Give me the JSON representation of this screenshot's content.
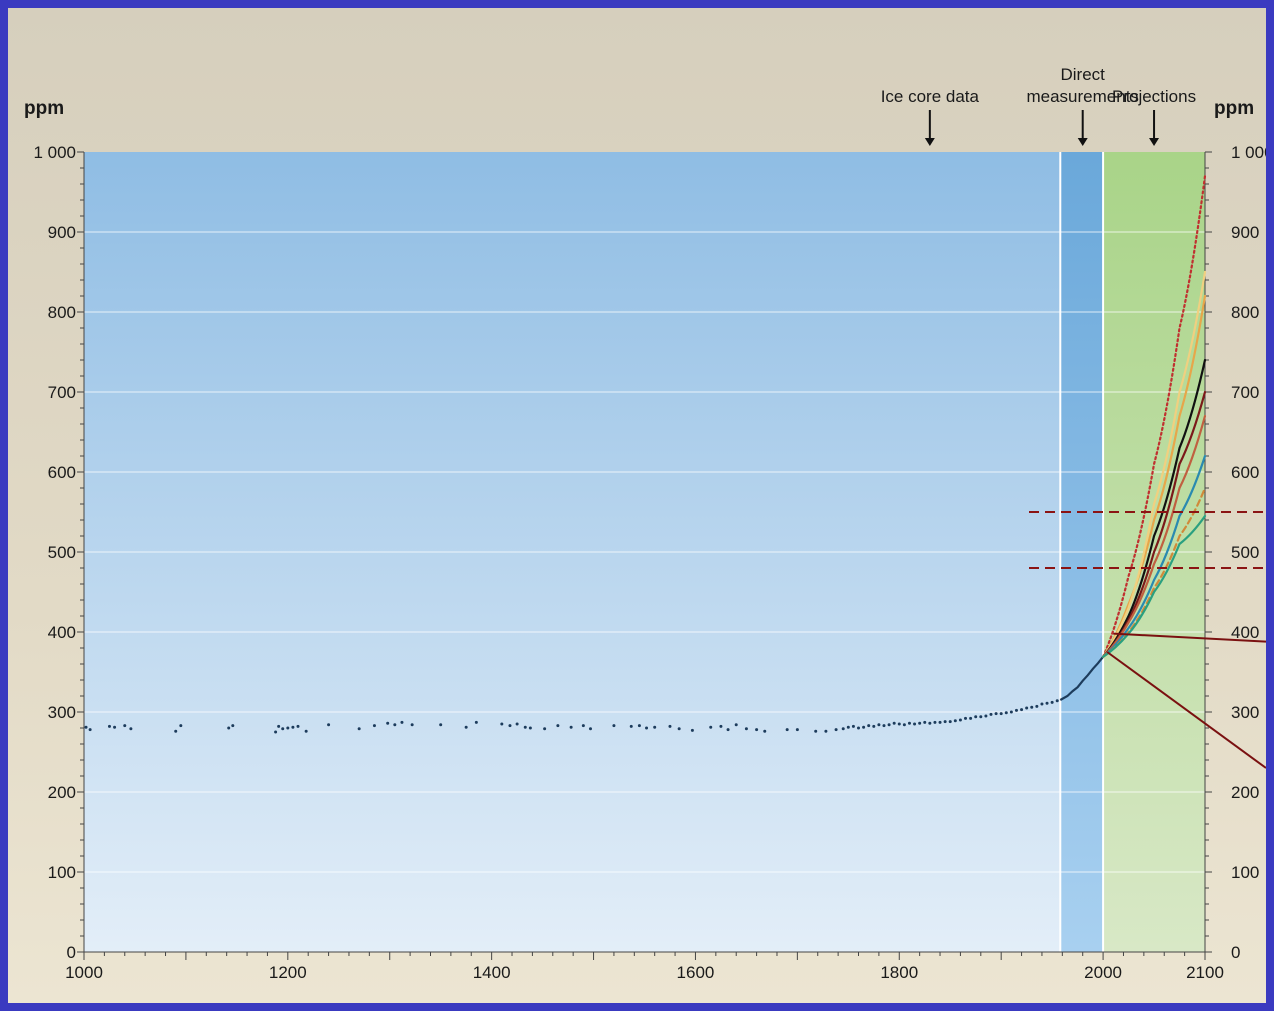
{
  "chart_data": {
    "type": "line",
    "title": "",
    "xlabel": "",
    "ylabel": "ppm",
    "y_unit_left": "ppm",
    "y_unit_right": "ppm",
    "xlim": [
      1000,
      2100
    ],
    "ylim": [
      0,
      1000
    ],
    "x_ticks": [
      {
        "value": 1000,
        "label": "1000"
      },
      {
        "value": 1200,
        "label": "1200"
      },
      {
        "value": 1400,
        "label": "1400"
      },
      {
        "value": 1600,
        "label": "1600"
      },
      {
        "value": 1800,
        "label": "1800"
      },
      {
        "value": 2000,
        "label": "2000"
      },
      {
        "value": 2100,
        "label": "2100"
      }
    ],
    "y_ticks": [
      {
        "value": 0,
        "label": "0"
      },
      {
        "value": 100,
        "label": "100"
      },
      {
        "value": 200,
        "label": "200"
      },
      {
        "value": 300,
        "label": "300"
      },
      {
        "value": 400,
        "label": "400"
      },
      {
        "value": 500,
        "label": "500"
      },
      {
        "value": 600,
        "label": "600"
      },
      {
        "value": 700,
        "label": "700"
      },
      {
        "value": 800,
        "label": "800"
      },
      {
        "value": 900,
        "label": "900"
      },
      {
        "value": 1000,
        "label": "1 000"
      }
    ],
    "grid": "horizontal",
    "periods": [
      {
        "name": "Ice core data",
        "from": 1000,
        "to": 1958,
        "color": "#9ec6e8"
      },
      {
        "name": "Direct measurements",
        "from": 1958,
        "to": 2000,
        "color": "#6aa8da"
      },
      {
        "name": "Projections",
        "from": 2000,
        "to": 2100,
        "color": "#b9d89a"
      }
    ],
    "annotations": [
      {
        "text": "Ice core data",
        "x": 1830,
        "lines": [
          "Ice core data"
        ]
      },
      {
        "text": "Direct measurements",
        "x": 1980,
        "lines": [
          "Direct",
          "measurements"
        ]
      },
      {
        "text": "Projections",
        "x": 2050,
        "lines": [
          "Projections"
        ]
      }
    ],
    "reference_levels": [
      550,
      480
    ],
    "ice_core_points": [
      [
        1002,
        281
      ],
      [
        1006,
        278
      ],
      [
        1025,
        282
      ],
      [
        1030,
        281
      ],
      [
        1040,
        283
      ],
      [
        1046,
        279
      ],
      [
        1090,
        276
      ],
      [
        1095,
        283
      ],
      [
        1142,
        280
      ],
      [
        1146,
        283
      ],
      [
        1188,
        275
      ],
      [
        1191,
        282
      ],
      [
        1195,
        279
      ],
      [
        1200,
        280
      ],
      [
        1205,
        281
      ],
      [
        1210,
        282
      ],
      [
        1218,
        276
      ],
      [
        1240,
        284
      ],
      [
        1270,
        279
      ],
      [
        1285,
        283
      ],
      [
        1298,
        286
      ],
      [
        1305,
        284
      ],
      [
        1312,
        287
      ],
      [
        1322,
        284
      ],
      [
        1350,
        284
      ],
      [
        1375,
        281
      ],
      [
        1385,
        287
      ],
      [
        1410,
        285
      ],
      [
        1418,
        283
      ],
      [
        1425,
        285
      ],
      [
        1433,
        281
      ],
      [
        1438,
        280
      ],
      [
        1452,
        279
      ],
      [
        1465,
        283
      ],
      [
        1478,
        281
      ],
      [
        1490,
        283
      ],
      [
        1497,
        279
      ],
      [
        1520,
        283
      ],
      [
        1537,
        282
      ],
      [
        1545,
        283
      ],
      [
        1552,
        280
      ],
      [
        1560,
        281
      ],
      [
        1575,
        282
      ],
      [
        1584,
        279
      ],
      [
        1597,
        277
      ],
      [
        1615,
        281
      ],
      [
        1625,
        282
      ],
      [
        1632,
        278
      ],
      [
        1640,
        284
      ],
      [
        1650,
        279
      ],
      [
        1660,
        278
      ],
      [
        1668,
        276
      ],
      [
        1690,
        278
      ],
      [
        1700,
        278
      ],
      [
        1718,
        276
      ],
      [
        1728,
        276
      ],
      [
        1738,
        278
      ],
      [
        1745,
        279
      ],
      [
        1750,
        281
      ],
      [
        1755,
        282
      ],
      [
        1760,
        280
      ],
      [
        1765,
        281
      ],
      [
        1770,
        283
      ],
      [
        1775,
        282
      ],
      [
        1780,
        284
      ],
      [
        1785,
        283
      ],
      [
        1790,
        284
      ],
      [
        1795,
        286
      ],
      [
        1800,
        285
      ],
      [
        1805,
        284
      ],
      [
        1810,
        286
      ],
      [
        1815,
        285
      ],
      [
        1820,
        286
      ],
      [
        1825,
        287
      ],
      [
        1830,
        286
      ],
      [
        1835,
        287
      ],
      [
        1840,
        287
      ],
      [
        1845,
        288
      ],
      [
        1850,
        288
      ],
      [
        1855,
        289
      ],
      [
        1860,
        290
      ],
      [
        1865,
        292
      ],
      [
        1870,
        292
      ],
      [
        1875,
        294
      ],
      [
        1880,
        294
      ],
      [
        1885,
        295
      ],
      [
        1890,
        297
      ],
      [
        1895,
        298
      ],
      [
        1900,
        298
      ],
      [
        1905,
        299
      ],
      [
        1910,
        300
      ],
      [
        1915,
        302
      ],
      [
        1920,
        303
      ],
      [
        1925,
        305
      ],
      [
        1930,
        306
      ],
      [
        1935,
        307
      ],
      [
        1940,
        310
      ],
      [
        1945,
        311
      ],
      [
        1950,
        312
      ],
      [
        1955,
        314
      ]
    ],
    "direct_measurements": {
      "x": [
        1958,
        1965,
        1970,
        1975,
        1980,
        1985,
        1990,
        1995,
        2000
      ],
      "y": [
        315,
        320,
        326,
        331,
        339,
        346,
        354,
        361,
        369
      ]
    },
    "projection_x": [
      2000,
      2025,
      2050,
      2075,
      2100
    ],
    "series": [
      {
        "color": "#c03030",
        "style": "dotted",
        "values": [
          369,
          470,
          610,
          780,
          970
        ]
      },
      {
        "color": "#e7a64a",
        "values": [
          369,
          435,
          540,
          670,
          820
        ]
      },
      {
        "color": "#f0d080",
        "values": [
          369,
          430,
          560,
          700,
          850
        ]
      },
      {
        "color": "#111111",
        "values": [
          369,
          420,
          520,
          630,
          740
        ]
      },
      {
        "color": "#7b1a1a",
        "values": [
          369,
          415,
          500,
          610,
          700
        ]
      },
      {
        "color": "#c06040",
        "values": [
          369,
          412,
          485,
          580,
          670
        ]
      },
      {
        "color": "#2a8ab0",
        "values": [
          369,
          405,
          465,
          545,
          620
        ]
      },
      {
        "color": "#d08a3a",
        "style": "dashed",
        "values": [
          369,
          400,
          455,
          520,
          580
        ]
      },
      {
        "color": "#2aa080",
        "values": [
          369,
          398,
          450,
          510,
          545
        ]
      }
    ],
    "callout_pointer_color": "#7a1010"
  }
}
